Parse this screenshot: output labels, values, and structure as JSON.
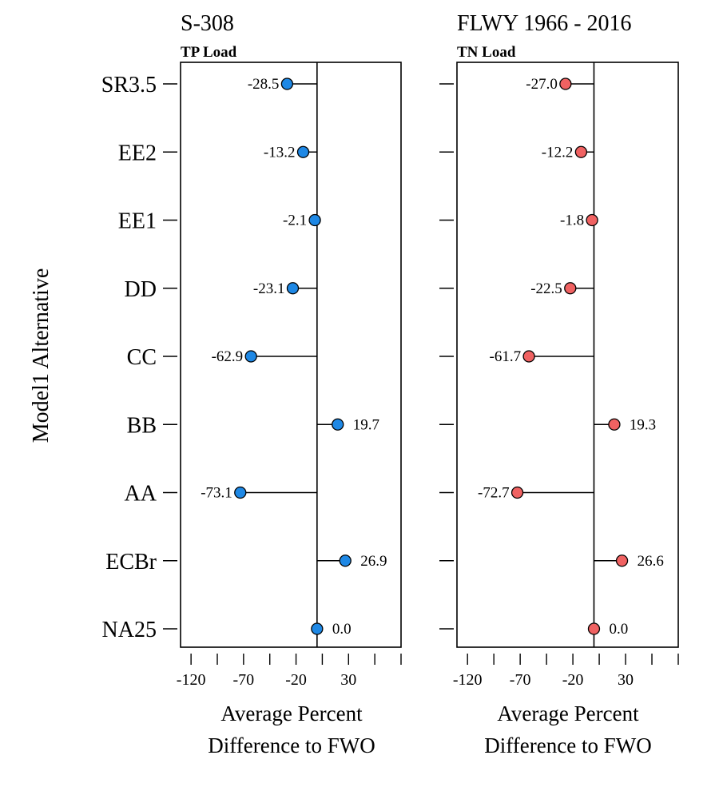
{
  "titles": {
    "left": "S-308",
    "right": "FLWY 1966 - 2016"
  },
  "y_axis_label": "Model1 Alternative",
  "x_axis_label": {
    "line1": "Average Percent",
    "line2": "Difference to FWO"
  },
  "colors": {
    "tp_points": "#1E88E5",
    "tn_points": "#F06262",
    "lines": "#000000"
  },
  "chart_data": [
    {
      "type": "scatter",
      "subtitle": "TP Load",
      "categories": [
        "SR3.5",
        "EE2",
        "EE1",
        "DD",
        "CC",
        "BB",
        "AA",
        "ECBr",
        "NA25"
      ],
      "values": [
        -28.5,
        -13.2,
        -2.1,
        -23.1,
        -62.9,
        19.7,
        -73.1,
        26.9,
        0.0
      ],
      "value_labels": [
        "-28.5",
        "-13.2",
        "-2.1",
        "-23.1",
        "-62.9",
        "19.7",
        "-73.1",
        "26.9",
        "0.0"
      ],
      "xticks": [
        -120,
        -70,
        -20,
        30
      ],
      "xtick_labels": [
        "-120",
        "-70",
        "-20",
        "30"
      ],
      "xlim": [
        -130,
        80
      ],
      "reference_line": 0
    },
    {
      "type": "scatter",
      "subtitle": "TN Load",
      "categories": [
        "SR3.5",
        "EE2",
        "EE1",
        "DD",
        "CC",
        "BB",
        "AA",
        "ECBr",
        "NA25"
      ],
      "values": [
        -27.0,
        -12.2,
        -1.8,
        -22.5,
        -61.7,
        19.3,
        -72.7,
        26.6,
        0.0
      ],
      "value_labels": [
        "-27.0",
        "-12.2",
        "-1.8",
        "-22.5",
        "-61.7",
        "19.3",
        "-72.7",
        "26.6",
        "0.0"
      ],
      "xticks": [
        -120,
        -70,
        -20,
        30
      ],
      "xtick_labels": [
        "-120",
        "-70",
        "-20",
        "30"
      ],
      "xlim": [
        -130,
        80
      ],
      "reference_line": 0
    }
  ]
}
